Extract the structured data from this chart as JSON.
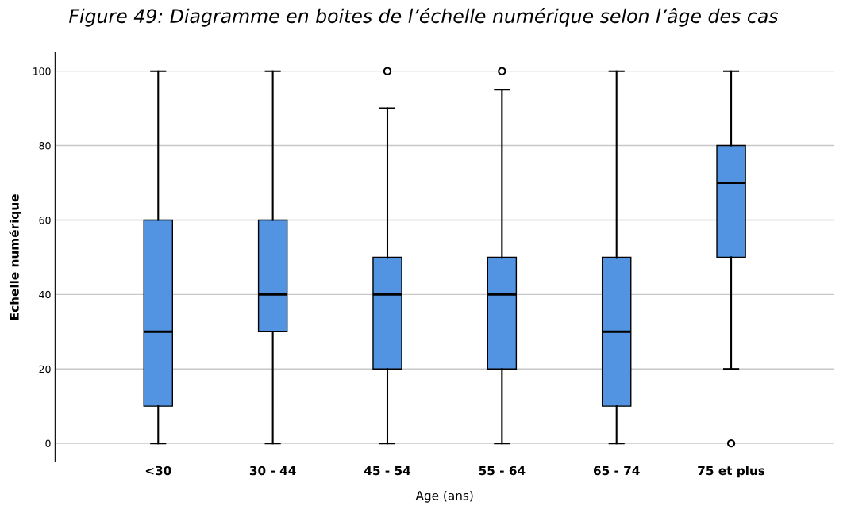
{
  "chart_data": {
    "type": "box",
    "title": "Figure 49: Diagramme en boites de l’échelle numérique selon l’âge des cas",
    "xlabel": "Age (ans)",
    "ylabel": "Echelle numérique",
    "categories": [
      "<30",
      "30 - 44",
      "45 - 54",
      "55 - 64",
      "65 - 74",
      "75 et plus"
    ],
    "boxes": [
      {
        "low": 0,
        "q1": 10,
        "median": 30,
        "q3": 60,
        "high": 100
      },
      {
        "low": 0,
        "q1": 30,
        "median": 40,
        "q3": 60,
        "high": 100
      },
      {
        "low": 0,
        "q1": 20,
        "median": 40,
        "q3": 50,
        "high": 90,
        "outliers": [
          100
        ]
      },
      {
        "low": 0,
        "q1": 20,
        "median": 40,
        "q3": 50,
        "high": 95,
        "outliers": [
          100
        ]
      },
      {
        "low": 0,
        "q1": 10,
        "median": 30,
        "q3": 50,
        "high": 100
      },
      {
        "low": 20,
        "q1": 50,
        "median": 70,
        "q3": 80,
        "high": 100,
        "outliers": [
          0
        ]
      }
    ],
    "color": "#5294e2",
    "ylim": [
      -5,
      105
    ],
    "yticks": [
      0,
      20,
      40,
      60,
      80,
      100
    ],
    "grid": "y"
  }
}
